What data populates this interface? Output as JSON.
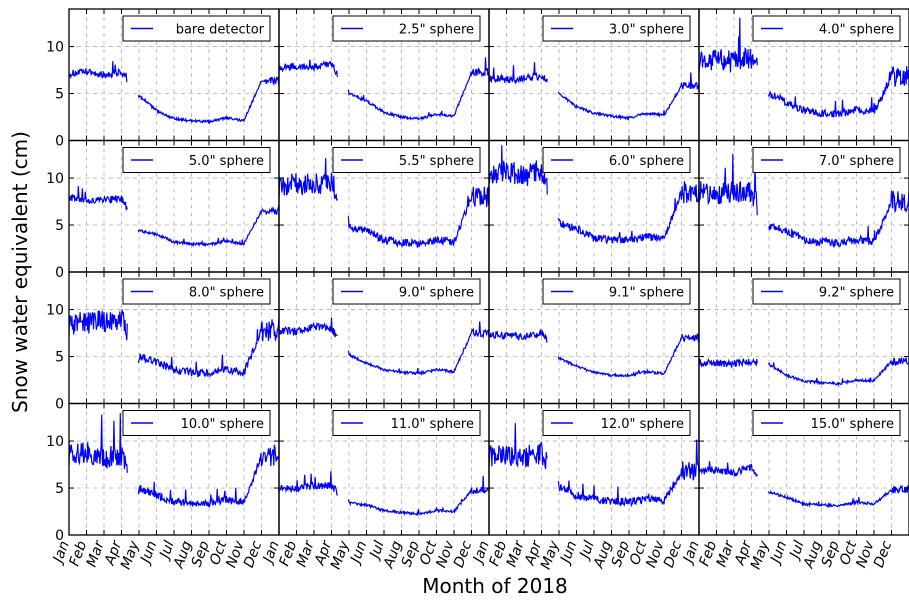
{
  "figure": {
    "ylabel": "Snow water equivalent (cm)",
    "xlabel": "Month of 2018",
    "months": [
      "Jan",
      "Feb",
      "Mar",
      "Apr",
      "May",
      "Jun",
      "Jul",
      "Aug",
      "Sep",
      "Oct",
      "Nov",
      "Dec"
    ],
    "yticks": [
      0,
      5,
      10
    ],
    "line_color": "#0000ff",
    "grid": true
  },
  "chart_data": [
    {
      "type": "line",
      "name": "bare detector",
      "ylim": [
        0,
        14
      ],
      "x": [
        "Jan",
        "Feb",
        "Mar",
        "Apr",
        "May",
        "Jun",
        "Jul",
        "Aug",
        "Sep",
        "Oct",
        "Nov",
        "Dec"
      ],
      "values": [
        7.1,
        7.3,
        7.0,
        7.3,
        4.8,
        3.2,
        2.3,
        2.1,
        2.0,
        2.4,
        2.1,
        6.4
      ],
      "legend": "top-right"
    },
    {
      "type": "line",
      "name": "2.5\" sphere",
      "ylim": [
        0,
        14
      ],
      "x": [
        "Jan",
        "Feb",
        "Mar",
        "Apr",
        "May",
        "Jun",
        "Jul",
        "Aug",
        "Sep",
        "Oct",
        "Nov",
        "Dec"
      ],
      "values": [
        7.8,
        7.9,
        7.8,
        8.2,
        5.0,
        4.2,
        3.0,
        2.5,
        2.3,
        2.8,
        2.6,
        7.3
      ],
      "legend": "top-right"
    },
    {
      "type": "line",
      "name": "3.0\" sphere",
      "ylim": [
        0,
        14
      ],
      "x": [
        "Jan",
        "Feb",
        "Mar",
        "Apr",
        "May",
        "Jun",
        "Jul",
        "Aug",
        "Sep",
        "Oct",
        "Nov",
        "Dec"
      ],
      "values": [
        6.7,
        6.5,
        6.6,
        6.9,
        5.0,
        3.6,
        2.9,
        2.6,
        2.4,
        2.9,
        2.7,
        5.8
      ],
      "legend": "top-right"
    },
    {
      "type": "line",
      "name": "4.0\" sphere",
      "ylim": [
        0,
        14
      ],
      "x": [
        "Jan",
        "Feb",
        "Mar",
        "Apr",
        "May",
        "Jun",
        "Jul",
        "Aug",
        "Sep",
        "Oct",
        "Nov",
        "Dec"
      ],
      "values": [
        8.4,
        8.6,
        8.3,
        8.8,
        5.0,
        4.1,
        3.2,
        2.9,
        2.8,
        3.3,
        3.1,
        6.8
      ],
      "legend": "top-right"
    },
    {
      "type": "line",
      "name": "5.0\" sphere",
      "ylim": [
        0,
        14
      ],
      "x": [
        "Jan",
        "Feb",
        "Mar",
        "Apr",
        "May",
        "Jun",
        "Jul",
        "Aug",
        "Sep",
        "Oct",
        "Nov",
        "Dec"
      ],
      "values": [
        8.0,
        7.6,
        7.7,
        7.8,
        4.4,
        4.0,
        3.2,
        3.0,
        2.9,
        3.3,
        3.0,
        6.5
      ],
      "legend": "top-right"
    },
    {
      "type": "line",
      "name": "5.5\" sphere",
      "ylim": [
        0,
        14
      ],
      "x": [
        "Jan",
        "Feb",
        "Mar",
        "Apr",
        "May",
        "Jun",
        "Jul",
        "Aug",
        "Sep",
        "Oct",
        "Nov",
        "Dec"
      ],
      "values": [
        9.0,
        9.5,
        9.3,
        9.8,
        4.8,
        4.5,
        3.4,
        3.1,
        3.0,
        3.4,
        3.2,
        8.0
      ],
      "legend": "top-right"
    },
    {
      "type": "line",
      "name": "6.0\" sphere",
      "ylim": [
        0,
        14
      ],
      "x": [
        "Jan",
        "Feb",
        "Mar",
        "Apr",
        "May",
        "Jun",
        "Jul",
        "Aug",
        "Sep",
        "Oct",
        "Nov",
        "Dec"
      ],
      "values": [
        10.5,
        10.8,
        10.2,
        10.9,
        5.2,
        4.6,
        3.6,
        3.4,
        3.3,
        3.8,
        3.5,
        8.5
      ],
      "legend": "top-right"
    },
    {
      "type": "line",
      "name": "7.0\" sphere",
      "ylim": [
        0,
        14
      ],
      "x": [
        "Jan",
        "Feb",
        "Mar",
        "Apr",
        "May",
        "Jun",
        "Jul",
        "Aug",
        "Sep",
        "Oct",
        "Nov",
        "Dec"
      ],
      "values": [
        8.5,
        8.2,
        8.7,
        8.4,
        4.8,
        4.4,
        3.4,
        3.2,
        3.1,
        3.5,
        3.2,
        7.5
      ],
      "legend": "top-right"
    },
    {
      "type": "line",
      "name": "8.0\" sphere",
      "ylim": [
        0,
        14
      ],
      "x": [
        "Jan",
        "Feb",
        "Mar",
        "Apr",
        "May",
        "Jun",
        "Jul",
        "Aug",
        "Sep",
        "Oct",
        "Nov",
        "Dec"
      ],
      "values": [
        8.5,
        8.6,
        8.8,
        9.0,
        5.0,
        4.4,
        3.6,
        3.3,
        3.2,
        3.7,
        3.3,
        7.8
      ],
      "legend": "top-right"
    },
    {
      "type": "line",
      "name": "9.0\" sphere",
      "ylim": [
        0,
        14
      ],
      "x": [
        "Jan",
        "Feb",
        "Mar",
        "Apr",
        "May",
        "Jun",
        "Jul",
        "Aug",
        "Sep",
        "Oct",
        "Nov",
        "Dec"
      ],
      "values": [
        7.8,
        7.6,
        8.2,
        8.0,
        5.2,
        4.3,
        3.6,
        3.3,
        3.2,
        3.6,
        3.4,
        7.5
      ],
      "legend": "top-right"
    },
    {
      "type": "line",
      "name": "9.1\" sphere",
      "ylim": [
        0,
        14
      ],
      "x": [
        "Jan",
        "Feb",
        "Mar",
        "Apr",
        "May",
        "Jun",
        "Jul",
        "Aug",
        "Sep",
        "Oct",
        "Nov",
        "Dec"
      ],
      "values": [
        7.4,
        7.2,
        7.1,
        7.6,
        4.8,
        4.0,
        3.3,
        3.0,
        3.0,
        3.4,
        3.2,
        7.0
      ],
      "legend": "top-right"
    },
    {
      "type": "line",
      "name": "9.2\" sphere",
      "ylim": [
        0,
        14
      ],
      "x": [
        "Jan",
        "Feb",
        "Mar",
        "Apr",
        "May",
        "Jun",
        "Jul",
        "Aug",
        "Sep",
        "Oct",
        "Nov",
        "Dec"
      ],
      "values": [
        4.4,
        4.3,
        4.2,
        4.5,
        4.2,
        3.0,
        2.4,
        2.2,
        2.1,
        2.5,
        2.4,
        4.5
      ],
      "legend": "top-right"
    },
    {
      "type": "line",
      "name": "10.0\" sphere",
      "ylim": [
        0,
        14
      ],
      "x": [
        "Jan",
        "Feb",
        "Mar",
        "Apr",
        "May",
        "Jun",
        "Jul",
        "Aug",
        "Sep",
        "Oct",
        "Nov",
        "Dec"
      ],
      "values": [
        8.5,
        8.8,
        8.2,
        8.6,
        5.0,
        4.2,
        3.6,
        3.4,
        3.4,
        3.8,
        3.5,
        8.5
      ],
      "legend": "top-right"
    },
    {
      "type": "line",
      "name": "11.0\" sphere",
      "ylim": [
        0,
        14
      ],
      "x": [
        "Jan",
        "Feb",
        "Mar",
        "Apr",
        "May",
        "Jun",
        "Jul",
        "Aug",
        "Sep",
        "Oct",
        "Nov",
        "Dec"
      ],
      "values": [
        5.0,
        4.9,
        5.3,
        5.2,
        3.4,
        3.2,
        2.6,
        2.4,
        2.2,
        2.6,
        2.5,
        4.8
      ],
      "legend": "top-right"
    },
    {
      "type": "line",
      "name": "12.0\" sphere",
      "ylim": [
        0,
        14
      ],
      "x": [
        "Jan",
        "Feb",
        "Mar",
        "Apr",
        "May",
        "Jun",
        "Jul",
        "Aug",
        "Sep",
        "Oct",
        "Nov",
        "Dec"
      ],
      "values": [
        8.4,
        8.6,
        8.3,
        8.7,
        5.2,
        4.2,
        3.8,
        3.6,
        3.5,
        3.9,
        3.6,
        6.8
      ],
      "legend": "top-right"
    },
    {
      "type": "line",
      "name": "15.0\" sphere",
      "ylim": [
        0,
        14
      ],
      "x": [
        "Jan",
        "Feb",
        "Mar",
        "Apr",
        "May",
        "Jun",
        "Jul",
        "Aug",
        "Sep",
        "Oct",
        "Nov",
        "Dec"
      ],
      "values": [
        6.8,
        7.0,
        6.6,
        7.2,
        4.6,
        4.0,
        3.3,
        3.2,
        3.1,
        3.5,
        3.3,
        4.8
      ],
      "legend": "top-right"
    }
  ]
}
